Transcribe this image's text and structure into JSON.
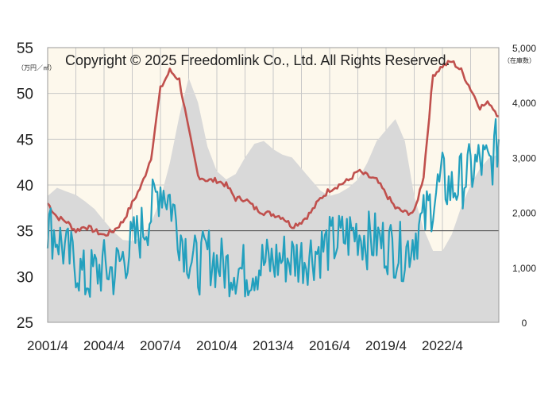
{
  "chart_data": {
    "type": "line",
    "title": "",
    "copyright": "Copyright © 2025 Freedomlink Co., Ltd. All Rights Reserved.",
    "left_axis": {
      "unit": "（万円／㎡）",
      "ylim": [
        25,
        55
      ],
      "ticks": [
        "25",
        "30",
        "35",
        "40",
        "45",
        "50",
        "55"
      ]
    },
    "right_axis": {
      "unit": "（在庫数）",
      "ylim": [
        0,
        5000
      ],
      "ticks": [
        "0",
        "1,000",
        "2,000",
        "3,000",
        "4,000",
        "5,000"
      ]
    },
    "x_axis": {
      "start": "2001/4",
      "end": "2025/4",
      "tick_labels": [
        "2001/4",
        "2004/4",
        "2007/4",
        "2010/4",
        "2013/4",
        "2016/4",
        "2019/4",
        "2022/4"
      ]
    },
    "grid": true,
    "colors": {
      "background": "#fdf8ec",
      "grid": "#c8c8c8",
      "area": "#d9d9d9",
      "price_line": "#c0504d",
      "contract_line": "#23a0be",
      "reference_line": "#333333"
    },
    "reference_line_value": 35,
    "series": [
      {
        "id": "inventory",
        "axis": "right",
        "style": "area",
        "points": [
          [
            "2001/4",
            2300
          ],
          [
            "2001/10",
            2450
          ],
          [
            "2002/4",
            2380
          ],
          [
            "2002/10",
            2320
          ],
          [
            "2003/4",
            2200
          ],
          [
            "2003/10",
            2060
          ],
          [
            "2004/4",
            1850
          ],
          [
            "2004/10",
            1650
          ],
          [
            "2005/4",
            1500
          ],
          [
            "2005/10",
            1480
          ],
          [
            "2006/4",
            1550
          ],
          [
            "2006/10",
            1800
          ],
          [
            "2007/4",
            2250
          ],
          [
            "2007/10",
            2900
          ],
          [
            "2008/4",
            3750
          ],
          [
            "2008/10",
            4450
          ],
          [
            "2009/4",
            4000
          ],
          [
            "2009/10",
            3200
          ],
          [
            "2010/4",
            2750
          ],
          [
            "2010/10",
            2600
          ],
          [
            "2011/4",
            2700
          ],
          [
            "2011/10",
            3000
          ],
          [
            "2012/4",
            3250
          ],
          [
            "2012/10",
            3300
          ],
          [
            "2013/4",
            3150
          ],
          [
            "2013/10",
            3050
          ],
          [
            "2014/4",
            3000
          ],
          [
            "2014/10",
            2800
          ],
          [
            "2015/4",
            2600
          ],
          [
            "2015/10",
            2400
          ],
          [
            "2016/4",
            2300
          ],
          [
            "2016/10",
            2350
          ],
          [
            "2017/4",
            2450
          ],
          [
            "2017/10",
            2600
          ],
          [
            "2018/4",
            2900
          ],
          [
            "2018/10",
            3300
          ],
          [
            "2019/4",
            3500
          ],
          [
            "2019/10",
            3700
          ],
          [
            "2020/4",
            3300
          ],
          [
            "2020/10",
            2300
          ],
          [
            "2021/4",
            1700
          ],
          [
            "2021/10",
            1300
          ],
          [
            "2022/4",
            1300
          ],
          [
            "2022/10",
            1600
          ],
          [
            "2023/4",
            2100
          ],
          [
            "2023/10",
            2500
          ],
          [
            "2024/4",
            2800
          ],
          [
            "2024/10",
            3000
          ],
          [
            "2025/4",
            3050
          ]
        ]
      },
      {
        "id": "unit-price",
        "axis": "left",
        "style": "line",
        "points": [
          [
            "2001/4",
            38.0
          ],
          [
            "2001/10",
            36.5
          ],
          [
            "2002/4",
            36.0
          ],
          [
            "2002/10",
            35.0
          ],
          [
            "2003/4",
            35.5
          ],
          [
            "2003/10",
            35.0
          ],
          [
            "2004/4",
            34.5
          ],
          [
            "2004/10",
            35.0
          ],
          [
            "2005/4",
            36.0
          ],
          [
            "2005/10",
            38.0
          ],
          [
            "2006/4",
            40.0
          ],
          [
            "2006/10",
            43.0
          ],
          [
            "2007/4",
            50.5
          ],
          [
            "2007/10",
            52.5
          ],
          [
            "2008/4",
            51.5
          ],
          [
            "2008/10",
            46.0
          ],
          [
            "2009/4",
            41.0
          ],
          [
            "2009/10",
            40.5
          ],
          [
            "2010/4",
            40.5
          ],
          [
            "2010/10",
            40.0
          ],
          [
            "2011/4",
            38.5
          ],
          [
            "2011/10",
            38.5
          ],
          [
            "2012/4",
            37.5
          ],
          [
            "2012/10",
            37.0
          ],
          [
            "2013/4",
            36.8
          ],
          [
            "2013/10",
            36.5
          ],
          [
            "2014/4",
            35.5
          ],
          [
            "2014/10",
            36.0
          ],
          [
            "2015/4",
            37.0
          ],
          [
            "2015/10",
            38.5
          ],
          [
            "2016/4",
            39.5
          ],
          [
            "2016/10",
            40.0
          ],
          [
            "2017/4",
            40.5
          ],
          [
            "2017/10",
            41.5
          ],
          [
            "2018/4",
            41.0
          ],
          [
            "2018/10",
            40.5
          ],
          [
            "2019/4",
            39.0
          ],
          [
            "2019/10",
            37.5
          ],
          [
            "2020/4",
            37.0
          ],
          [
            "2020/10",
            37.0
          ],
          [
            "2021/4",
            41.0
          ],
          [
            "2021/10",
            52.0
          ],
          [
            "2022/4",
            53.0
          ],
          [
            "2022/10",
            53.5
          ],
          [
            "2023/4",
            52.5
          ],
          [
            "2023/10",
            50.5
          ],
          [
            "2024/4",
            48.5
          ],
          [
            "2024/10",
            49.0
          ],
          [
            "2025/4",
            47.5
          ]
        ]
      },
      {
        "id": "contracts",
        "axis": "left",
        "style": "line",
        "points": [
          [
            "2001/4",
            35.5
          ],
          [
            "2001/10",
            34.5
          ],
          [
            "2002/4",
            32.5
          ],
          [
            "2002/10",
            31.5
          ],
          [
            "2003/4",
            29.5
          ],
          [
            "2003/10",
            30.5
          ],
          [
            "2004/4",
            31.0
          ],
          [
            "2004/10",
            30.5
          ],
          [
            "2005/4",
            32.0
          ],
          [
            "2005/10",
            33.5
          ],
          [
            "2006/4",
            35.0
          ],
          [
            "2006/10",
            37.0
          ],
          [
            "2007/4",
            40.0
          ],
          [
            "2007/10",
            38.5
          ],
          [
            "2008/4",
            35.0
          ],
          [
            "2008/10",
            32.5
          ],
          [
            "2009/4",
            31.0
          ],
          [
            "2009/10",
            32.5
          ],
          [
            "2010/4",
            31.5
          ],
          [
            "2010/10",
            31.0
          ],
          [
            "2011/4",
            31.0
          ],
          [
            "2011/10",
            30.5
          ],
          [
            "2012/4",
            31.0
          ],
          [
            "2012/10",
            31.5
          ],
          [
            "2013/4",
            31.5
          ],
          [
            "2013/10",
            32.0
          ],
          [
            "2014/4",
            32.0
          ],
          [
            "2014/10",
            32.0
          ],
          [
            "2015/4",
            32.5
          ],
          [
            "2015/10",
            33.0
          ],
          [
            "2016/4",
            33.5
          ],
          [
            "2016/10",
            34.0
          ],
          [
            "2017/4",
            34.5
          ],
          [
            "2017/10",
            35.0
          ],
          [
            "2018/4",
            34.0
          ],
          [
            "2018/10",
            34.0
          ],
          [
            "2019/4",
            33.5
          ],
          [
            "2019/10",
            33.0
          ],
          [
            "2020/4",
            32.5
          ],
          [
            "2020/10",
            34.5
          ],
          [
            "2021/4",
            36.0
          ],
          [
            "2021/10",
            38.5
          ],
          [
            "2022/4",
            40.5
          ],
          [
            "2022/10",
            39.5
          ],
          [
            "2023/4",
            40.5
          ],
          [
            "2023/10",
            41.5
          ],
          [
            "2024/4",
            42.5
          ],
          [
            "2024/10",
            42.0
          ],
          [
            "2025/4",
            45.0
          ]
        ]
      }
    ]
  }
}
